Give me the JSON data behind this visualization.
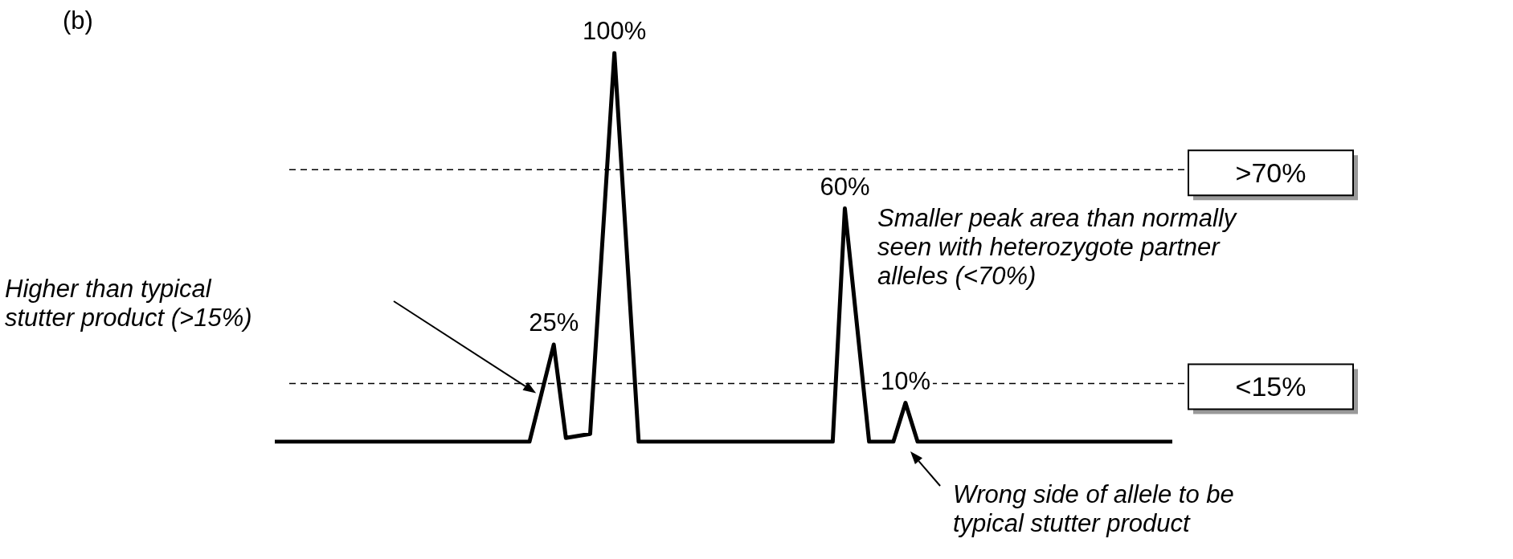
{
  "chart_data": {
    "type": "line",
    "categories": [
      null,
      null,
      null,
      null,
      null,
      null,
      null,
      null,
      null,
      null,
      null,
      null,
      null,
      null,
      null,
      null,
      null,
      null,
      null,
      null,
      null,
      null,
      null,
      null,
      null,
      null,
      null,
      null,
      null,
      null,
      null,
      null,
      null,
      null,
      null,
      null,
      null,
      null,
      null,
      null,
      null,
      null,
      null,
      null,
      null,
      null,
      null,
      null,
      null,
      null,
      null,
      null,
      null,
      null,
      null,
      null,
      null,
      null,
      null,
      null,
      null,
      null,
      null,
      null,
      null,
      null,
      null,
      null,
      null,
      null,
      null,
      null,
      null,
      null,
      null
    ],
    "values": [
      0,
      0,
      0,
      0,
      0,
      0,
      0,
      0,
      0,
      0,
      0,
      0,
      0,
      0,
      0,
      0,
      0,
      0,
      0,
      0,
      0,
      0,
      12.5,
      25,
      1,
      1.5,
      2,
      51,
      100,
      50,
      0,
      0,
      0,
      0,
      0,
      0,
      0,
      0,
      0,
      0,
      0,
      0,
      0,
      0,
      0,
      0,
      0,
      60,
      30,
      0,
      0,
      0,
      10,
      0,
      0,
      0,
      0,
      0,
      0,
      0,
      0,
      0,
      0,
      0,
      0,
      0,
      0,
      0,
      0,
      0,
      0,
      0,
      0,
      0,
      0
    ],
    "value_labels": [
      null,
      null,
      null,
      null,
      null,
      null,
      null,
      null,
      null,
      null,
      null,
      null,
      null,
      null,
      null,
      null,
      null,
      null,
      null,
      null,
      null,
      null,
      null,
      "25%",
      null,
      null,
      null,
      null,
      "100%",
      null,
      null,
      null,
      null,
      null,
      null,
      null,
      null,
      null,
      null,
      null,
      null,
      null,
      null,
      null,
      null,
      null,
      null,
      "60%",
      null,
      null,
      null,
      null,
      "10%",
      null,
      null,
      null,
      null,
      null,
      null,
      null,
      null,
      null,
      null,
      null,
      null,
      null,
      null,
      null,
      null,
      null,
      null,
      null,
      null,
      null,
      null
    ],
    "color": "#000000",
    "grid": false,
    "legend": false,
    "tick_labels": false,
    "marker": "none",
    "line_style": "solid",
    "ref_lines": [
      {
        "axis": "y",
        "value": 70,
        "label": ">70%",
        "line_style": "dashed",
        "color": "#000000"
      },
      {
        "axis": "y",
        "value": 15,
        "label": "<15%",
        "line_style": "dashed",
        "color": "#000000"
      }
    ],
    "annotations": [
      "(b)",
      "Higher than typical\nstutter product (>15%)",
      "Smaller peak area than normally\nseen with heterozygote partner\nalleles (<70%)",
      "Wrong side of allele to be\ntypical stutter product"
    ]
  }
}
